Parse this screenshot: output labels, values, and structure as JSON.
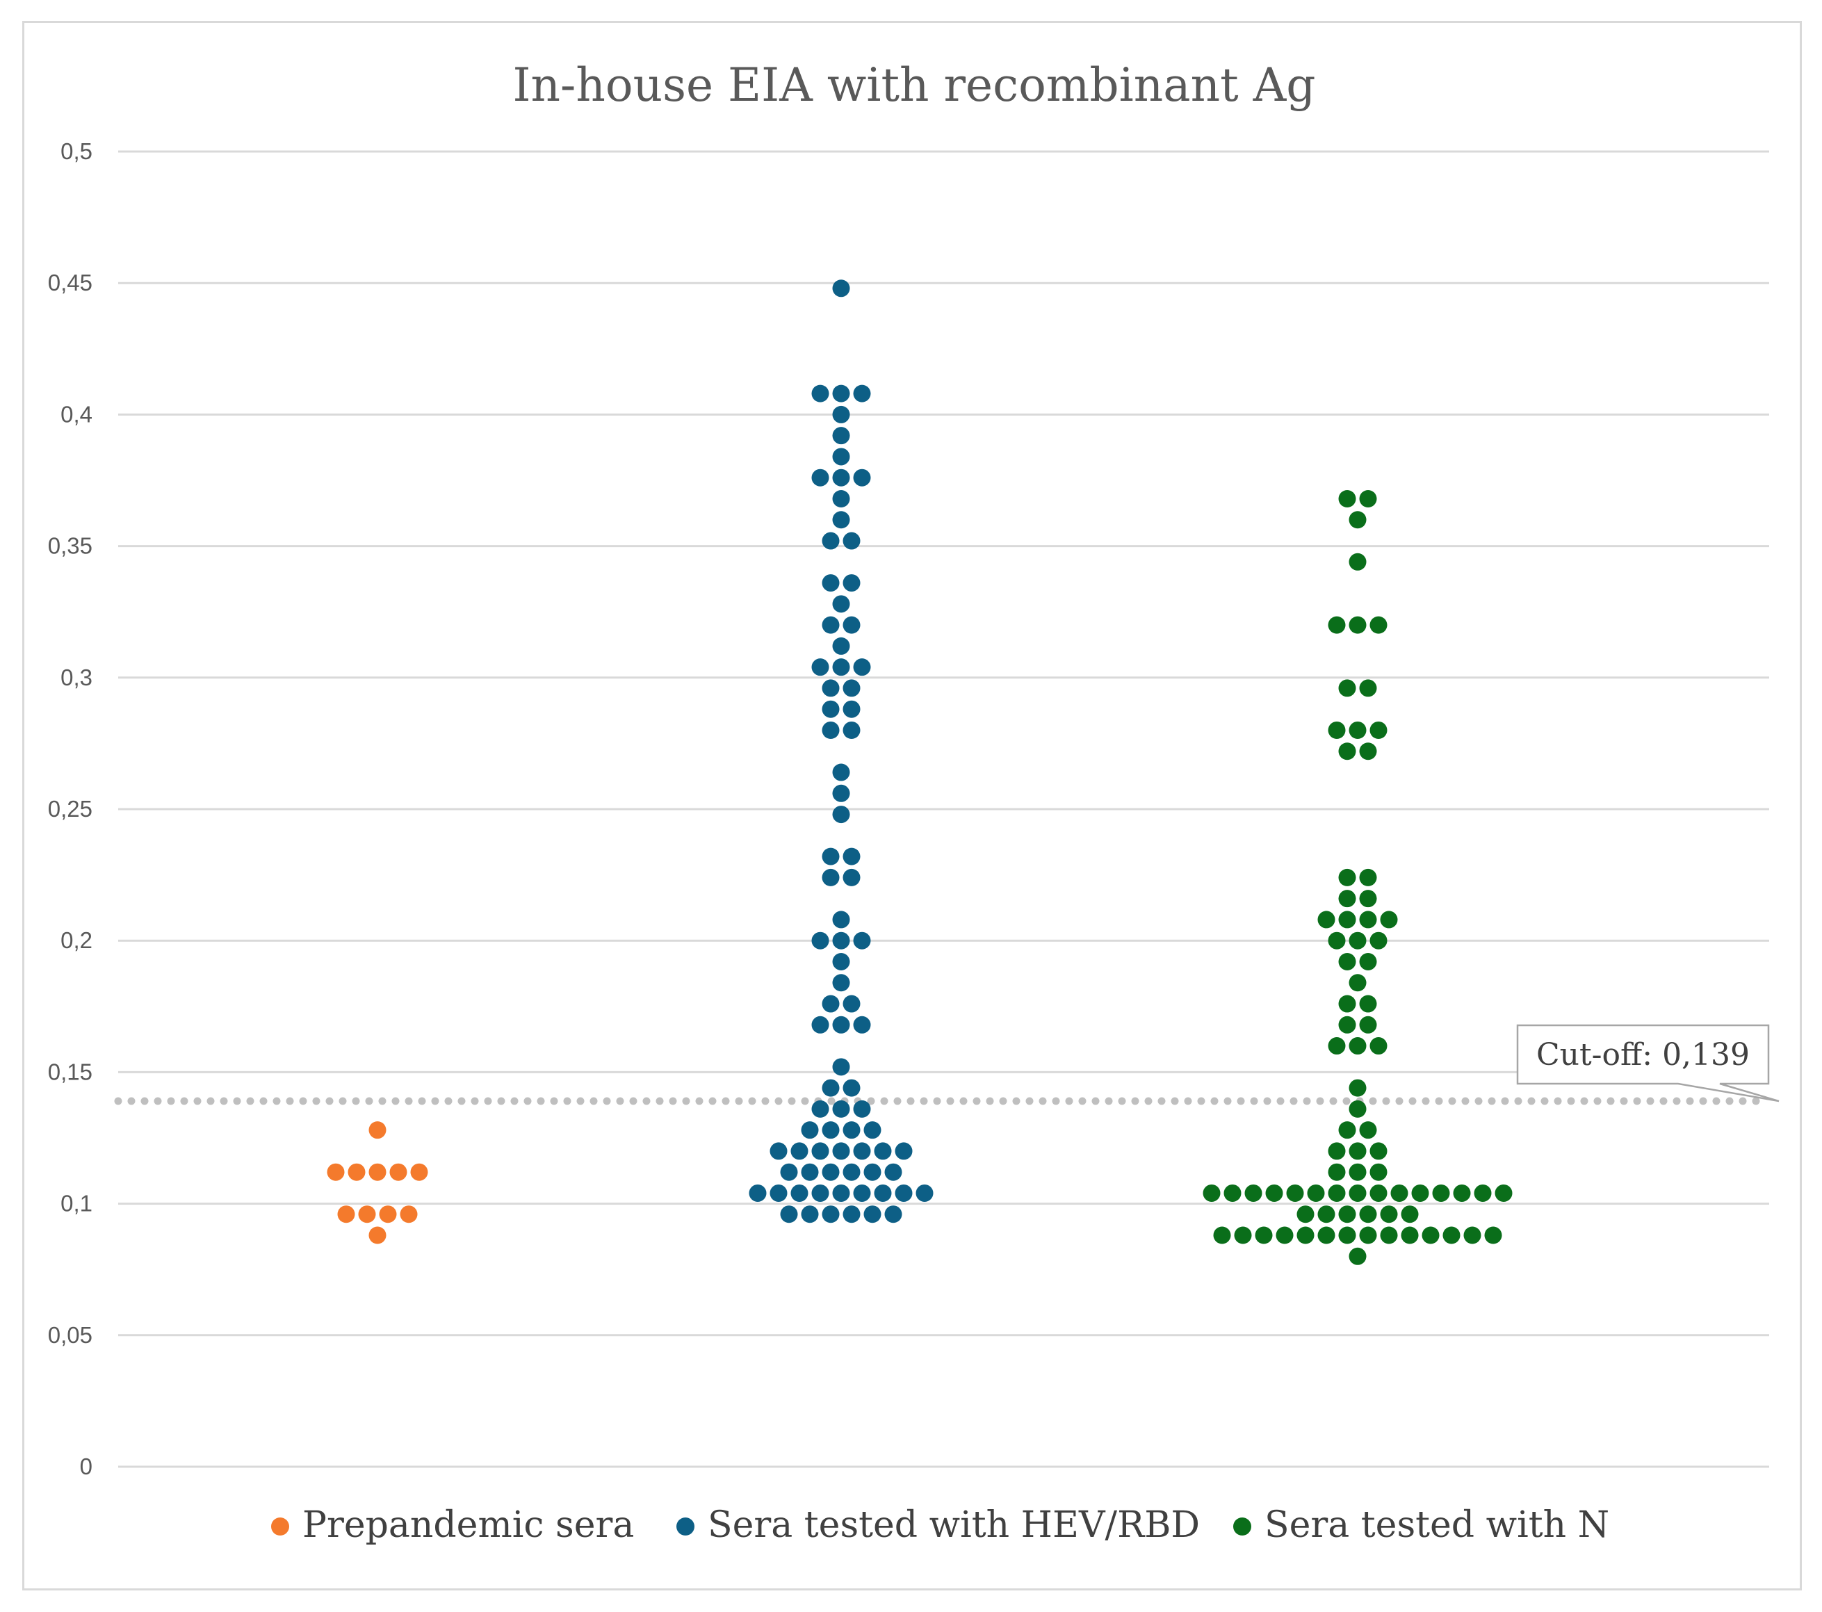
{
  "chart_data": {
    "type": "scatter",
    "subtype": "beeswarm",
    "title": "In-house EIA with recombinant Ag",
    "xlabel": "",
    "ylabel": "",
    "ylim": [
      0,
      0.5
    ],
    "yticks": [
      0,
      0.05,
      0.1,
      0.15,
      0.2,
      0.25,
      0.3,
      0.35,
      0.4,
      0.45,
      0.5
    ],
    "ytick_labels": [
      "0",
      "0,05",
      "0,1",
      "0,15",
      "0,2",
      "0,25",
      "0,3",
      "0,35",
      "0,4",
      "0,45",
      "0,5"
    ],
    "grid": true,
    "legend_position": "bottom",
    "cutoff": {
      "value": 0.139,
      "label": "Cut-off: 0,139",
      "style": "dotted",
      "color": "#bfbfbf"
    },
    "series": [
      {
        "name": "Prepandemic sera",
        "color": "#f47a2c",
        "groups": [
          {
            "y": 0.128,
            "count": 1
          },
          {
            "y": 0.112,
            "count": 5
          },
          {
            "y": 0.096,
            "count": 4
          },
          {
            "y": 0.088,
            "count": 1
          }
        ]
      },
      {
        "name": "Sera tested with HEV/RBD",
        "color": "#0d5f86",
        "groups": [
          {
            "y": 0.448,
            "count": 1
          },
          {
            "y": 0.408,
            "count": 3
          },
          {
            "y": 0.4,
            "count": 1
          },
          {
            "y": 0.392,
            "count": 1
          },
          {
            "y": 0.384,
            "count": 1
          },
          {
            "y": 0.376,
            "count": 3
          },
          {
            "y": 0.368,
            "count": 1
          },
          {
            "y": 0.36,
            "count": 1
          },
          {
            "y": 0.352,
            "count": 2
          },
          {
            "y": 0.336,
            "count": 2
          },
          {
            "y": 0.328,
            "count": 1
          },
          {
            "y": 0.32,
            "count": 2
          },
          {
            "y": 0.312,
            "count": 1
          },
          {
            "y": 0.304,
            "count": 3
          },
          {
            "y": 0.296,
            "count": 2
          },
          {
            "y": 0.288,
            "count": 2
          },
          {
            "y": 0.28,
            "count": 2
          },
          {
            "y": 0.264,
            "count": 1
          },
          {
            "y": 0.256,
            "count": 1
          },
          {
            "y": 0.248,
            "count": 1
          },
          {
            "y": 0.232,
            "count": 2
          },
          {
            "y": 0.224,
            "count": 2
          },
          {
            "y": 0.208,
            "count": 1
          },
          {
            "y": 0.2,
            "count": 3
          },
          {
            "y": 0.192,
            "count": 1
          },
          {
            "y": 0.184,
            "count": 1
          },
          {
            "y": 0.176,
            "count": 2
          },
          {
            "y": 0.168,
            "count": 3
          },
          {
            "y": 0.152,
            "count": 1
          },
          {
            "y": 0.144,
            "count": 2
          },
          {
            "y": 0.136,
            "count": 3
          },
          {
            "y": 0.128,
            "count": 4
          },
          {
            "y": 0.12,
            "count": 7
          },
          {
            "y": 0.112,
            "count": 6
          },
          {
            "y": 0.104,
            "count": 9
          },
          {
            "y": 0.096,
            "count": 6
          }
        ]
      },
      {
        "name": "Sera tested with N",
        "color": "#0a6e1a",
        "groups": [
          {
            "y": 0.368,
            "count": 2
          },
          {
            "y": 0.36,
            "count": 1
          },
          {
            "y": 0.344,
            "count": 1
          },
          {
            "y": 0.32,
            "count": 3
          },
          {
            "y": 0.296,
            "count": 2
          },
          {
            "y": 0.28,
            "count": 3
          },
          {
            "y": 0.272,
            "count": 2
          },
          {
            "y": 0.224,
            "count": 2
          },
          {
            "y": 0.216,
            "count": 2
          },
          {
            "y": 0.208,
            "count": 4
          },
          {
            "y": 0.2,
            "count": 3
          },
          {
            "y": 0.192,
            "count": 2
          },
          {
            "y": 0.184,
            "count": 1
          },
          {
            "y": 0.176,
            "count": 2
          },
          {
            "y": 0.168,
            "count": 2
          },
          {
            "y": 0.16,
            "count": 3
          },
          {
            "y": 0.144,
            "count": 1
          },
          {
            "y": 0.136,
            "count": 1
          },
          {
            "y": 0.128,
            "count": 2
          },
          {
            "y": 0.12,
            "count": 3
          },
          {
            "y": 0.112,
            "count": 3
          },
          {
            "y": 0.104,
            "count": 15
          },
          {
            "y": 0.096,
            "count": 6
          },
          {
            "y": 0.088,
            "count": 14
          },
          {
            "y": 0.08,
            "count": 1
          }
        ]
      }
    ]
  }
}
